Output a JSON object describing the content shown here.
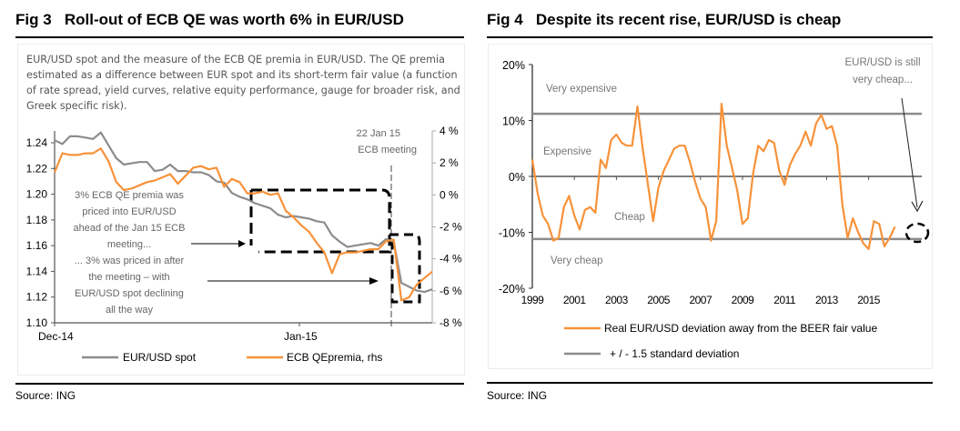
{
  "left": {
    "fig_label": "Fig 3",
    "title": "Roll-out of ECB QE was worth 6% in EUR/USD",
    "description": "EUR/USD spot and the measure of the ECB QE premia in EUR/USD.  The QE premia estimated as a difference between EUR spot and its short-term fair value (a function of rate spread, yield curves, relative equity performance, gauge for broader risk, and Greek specific risk).",
    "source": "Source: ING"
  },
  "right": {
    "fig_label": "Fig 4",
    "title": "Despite its recent rise, EUR/USD is cheap",
    "source": "Source: ING"
  },
  "chart_data": [
    {
      "type": "line",
      "title": "Roll-out of ECB QE was worth 6% in EUR/USD",
      "x_tick_labels": [
        "Dec-14",
        "Jan-15"
      ],
      "y_left": {
        "ticks": [
          "1.24",
          "1.22",
          "1.20",
          "1.18",
          "1.16",
          "1.14",
          "1.12",
          "1.10"
        ],
        "range": [
          1.1,
          1.24
        ]
      },
      "y_right": {
        "ticks": [
          "4%",
          "2%",
          "0%",
          "-2%",
          "-4%",
          "-6%",
          "-8%"
        ],
        "range": [
          -8,
          4
        ]
      },
      "event_line": {
        "label_line1": "22 Jan 15",
        "label_line2": "ECB meeting",
        "x_index": 36
      },
      "annotations": [
        "3% ECB QE premia was",
        "priced into EUR/USD",
        "ahead of the Jan 15 ECB",
        "meeting...",
        "... 3% was priced in after",
        "the meeting – with",
        "EUR/USD spot declining",
        "all the way"
      ],
      "series": [
        {
          "name": "EUR/USD spot",
          "axis": "left",
          "color": "#8c8c8c",
          "values": [
            1.242,
            1.239,
            1.245,
            1.245,
            1.244,
            1.243,
            1.248,
            1.238,
            1.228,
            1.223,
            1.224,
            1.225,
            1.225,
            1.218,
            1.219,
            1.223,
            1.218,
            1.218,
            1.217,
            1.217,
            1.215,
            1.21,
            1.209,
            1.201,
            1.198,
            1.196,
            1.193,
            1.191,
            1.189,
            1.184,
            1.182,
            1.183,
            1.182,
            1.181,
            1.179,
            1.178,
            1.168,
            1.163,
            1.159,
            1.16,
            1.161,
            1.162,
            1.16,
            1.165,
            1.163,
            1.131,
            1.128,
            1.125,
            1.124,
            1.126
          ]
        },
        {
          "name": "ECB QEpremia, rhs",
          "axis": "right",
          "color": "#f7923a",
          "values": [
            1.4,
            2.6,
            2.5,
            2.5,
            2.6,
            2.6,
            2.9,
            2.1,
            0.8,
            0.3,
            0.4,
            0.6,
            0.8,
            0.9,
            1.1,
            1.3,
            0.7,
            1.2,
            1.7,
            1.8,
            1.6,
            1.7,
            0.5,
            1.0,
            0.8,
            0.1,
            0.1,
            0.2,
            0.0,
            0.1,
            -1.0,
            -1.4,
            -1.9,
            -2.3,
            -3.0,
            -3.6,
            -4.9,
            -3.7,
            -3.6,
            -3.6,
            -3.5,
            -3.4,
            -3.4,
            -2.9,
            -2.8,
            -6.6,
            -6.4,
            -5.6,
            -5.2,
            -4.8
          ]
        }
      ],
      "legend": [
        "EUR/USD spot",
        "ECB QEpremia, rhs"
      ],
      "legend_position": "bottom"
    },
    {
      "type": "line",
      "title": "Despite its recent rise, EUR/USD is cheap",
      "x": [
        1999.0,
        1999.25,
        1999.5,
        1999.75,
        2000.0,
        2000.25,
        2000.5,
        2000.75,
        2001.0,
        2001.25,
        2001.5,
        2001.75,
        2002.0,
        2002.25,
        2002.5,
        2002.75,
        2003.0,
        2003.25,
        2003.5,
        2003.75,
        2004.0,
        2004.25,
        2004.5,
        2004.75,
        2005.0,
        2005.25,
        2005.5,
        2005.75,
        2006.0,
        2006.25,
        2006.5,
        2006.75,
        2007.0,
        2007.25,
        2007.5,
        2007.75,
        2008.0,
        2008.25,
        2008.5,
        2008.75,
        2009.0,
        2009.25,
        2009.5,
        2009.75,
        2010.0,
        2010.25,
        2010.5,
        2010.75,
        2011.0,
        2011.25,
        2011.5,
        2011.75,
        2012.0,
        2012.25,
        2012.5,
        2012.75,
        2013.0,
        2013.25,
        2013.5,
        2013.75,
        2014.0,
        2014.25,
        2014.5,
        2014.75,
        2015.0,
        2015.25,
        2015.5,
        2015.75,
        2016.0,
        2016.25
      ],
      "x_tick_labels": [
        "1999",
        "2001",
        "2003",
        "2005",
        "2007",
        "2009",
        "2011",
        "2013",
        "2015"
      ],
      "y_tick_labels": [
        "20%",
        "10%",
        "0%",
        "-10%",
        "-20%"
      ],
      "ylim": [
        -20,
        20
      ],
      "bands": {
        "upper": 11.2,
        "lower": -11.2,
        "zero": 0
      },
      "region_labels": [
        "Very expensive",
        "Expensive",
        "Cheap",
        "Very cheap"
      ],
      "annotation": [
        "EUR/USD is still",
        "very cheap..."
      ],
      "series": [
        {
          "name": "Real EUR/USD deviation away from the BEER fair value",
          "color": "#f7923a",
          "values": [
            3.0,
            -3.0,
            -7.0,
            -8.5,
            -11.5,
            -11.0,
            -5.5,
            -3.5,
            -7.0,
            -9.5,
            -6.0,
            -5.5,
            -6.5,
            3.0,
            1.5,
            6.5,
            7.5,
            6.0,
            5.5,
            5.5,
            12.5,
            5.0,
            -1.5,
            -8.0,
            -2.0,
            1.0,
            3.0,
            5.0,
            5.5,
            5.5,
            2.5,
            -1.0,
            -4.0,
            -5.5,
            -11.5,
            -8.0,
            13.0,
            5.5,
            1.5,
            -2.5,
            -8.5,
            -7.5,
            0.5,
            5.5,
            4.5,
            6.5,
            6.0,
            1.0,
            -1.5,
            2.0,
            4.0,
            5.5,
            8.0,
            5.5,
            9.5,
            11.0,
            8.5,
            9.0,
            5.5,
            -5.0,
            -11.0,
            -7.5,
            -10.0,
            -12.0,
            -13.0,
            -8.0,
            -8.5,
            -12.5,
            -11.0,
            -9.0
          ]
        },
        {
          "name": "+ / -  1.5 standard deviation",
          "color": "#8c8c8c",
          "values": [
            11.2,
            -11.2
          ]
        }
      ],
      "legend": [
        "Real EUR/USD  deviation away from the BEER fair value",
        "+ / -  1.5 standard deviation"
      ],
      "legend_position": "bottom"
    }
  ]
}
